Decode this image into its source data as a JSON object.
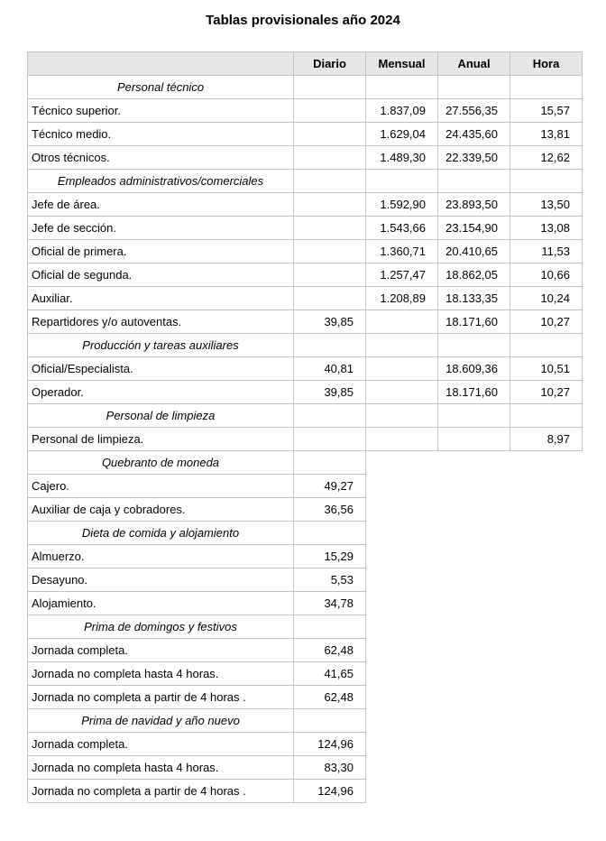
{
  "page": {
    "title": "Tablas provisionales año 2024"
  },
  "colors": {
    "header_bg": "#e6e6e6",
    "border": "#c2c2c2",
    "text": "#000000"
  },
  "table": {
    "headers": [
      "",
      "Diario",
      "Mensual",
      "Anual",
      "Hora"
    ],
    "rows": [
      {
        "type": "section",
        "label": "Personal técnico",
        "values": [
          "",
          "",
          "",
          ""
        ]
      },
      {
        "type": "data",
        "label": "Técnico superior.",
        "values": [
          "",
          "1.837,09",
          "27.556,35",
          "15,57"
        ]
      },
      {
        "type": "data",
        "label": "Técnico medio.",
        "values": [
          "",
          "1.629,04",
          "24.435,60",
          "13,81"
        ]
      },
      {
        "type": "data",
        "label": "Otros técnicos.",
        "values": [
          "",
          "1.489,30",
          "22.339,50",
          "12,62"
        ]
      },
      {
        "type": "section",
        "label": "Empleados administrativos/comerciales",
        "values": [
          "",
          "",
          "",
          ""
        ]
      },
      {
        "type": "data",
        "label": "Jefe de área.",
        "values": [
          "",
          "1.592,90",
          "23.893,50",
          "13,50"
        ]
      },
      {
        "type": "data",
        "label": "Jefe de sección.",
        "values": [
          "",
          "1.543,66",
          "23.154,90",
          "13,08"
        ]
      },
      {
        "type": "data",
        "label": "Oficial de primera.",
        "values": [
          "",
          "1.360,71",
          "20.410,65",
          "11,53"
        ]
      },
      {
        "type": "data",
        "label": "Oficial de segunda.",
        "values": [
          "",
          "1.257,47",
          "18.862,05",
          "10,66"
        ]
      },
      {
        "type": "data",
        "label": "Auxiliar.",
        "values": [
          "",
          "1.208,89",
          "18.133,35",
          "10,24"
        ]
      },
      {
        "type": "data",
        "label": "Repartidores y/o autoventas.",
        "values": [
          "39,85",
          "",
          "18.171,60",
          "10,27"
        ]
      },
      {
        "type": "section",
        "label": "Producción y tareas auxiliares",
        "values": [
          "",
          "",
          "",
          ""
        ]
      },
      {
        "type": "data",
        "label": "Oficial/Especialista.",
        "values": [
          "40,81",
          "",
          "18.609,36",
          "10,51"
        ]
      },
      {
        "type": "data",
        "label": "Operador.",
        "values": [
          "39,85",
          "",
          "18.171,60",
          "10,27"
        ]
      },
      {
        "type": "section",
        "label": "Personal de limpieza",
        "values": [
          "",
          "",
          "",
          ""
        ]
      },
      {
        "type": "data",
        "label": "Personal de limpieza.",
        "values": [
          "",
          "",
          "",
          "8,97"
        ]
      },
      {
        "type": "section",
        "label": "Quebranto de moneda",
        "values": [
          ""
        ]
      },
      {
        "type": "data",
        "label": "Cajero.",
        "values": [
          "49,27"
        ]
      },
      {
        "type": "data",
        "label": "Auxiliar de caja y cobradores.",
        "values": [
          "36,56"
        ]
      },
      {
        "type": "section",
        "label": "Dieta de comida y alojamiento",
        "values": [
          ""
        ]
      },
      {
        "type": "data",
        "label": "Almuerzo.",
        "values": [
          "15,29"
        ]
      },
      {
        "type": "data",
        "label": "Desayuno.",
        "values": [
          "5,53"
        ]
      },
      {
        "type": "data",
        "label": "Alojamiento.",
        "values": [
          "34,78"
        ]
      },
      {
        "type": "section",
        "label": "Prima de domingos y festivos",
        "values": [
          ""
        ]
      },
      {
        "type": "data",
        "label": "Jornada completa.",
        "values": [
          "62,48"
        ]
      },
      {
        "type": "data",
        "label": "Jornada no completa hasta 4 horas.",
        "values": [
          "41,65"
        ]
      },
      {
        "type": "data",
        "label": "Jornada no completa a partir de 4 horas .",
        "values": [
          "62,48"
        ]
      },
      {
        "type": "section",
        "label": "Prima de navidad y año nuevo",
        "values": [
          ""
        ]
      },
      {
        "type": "data",
        "label": "Jornada completa.",
        "values": [
          "124,96"
        ]
      },
      {
        "type": "data",
        "label": "Jornada no completa hasta 4 horas.",
        "values": [
          "83,30"
        ]
      },
      {
        "type": "data",
        "label": "Jornada no completa a partir de 4 horas .",
        "values": [
          "124,96"
        ]
      }
    ]
  }
}
